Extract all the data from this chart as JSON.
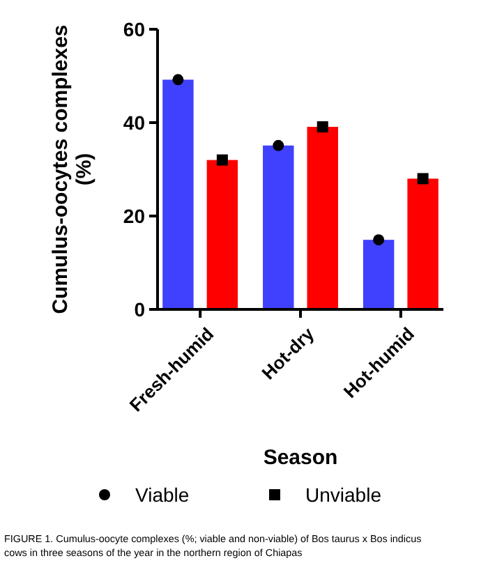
{
  "chart_data": {
    "type": "bar",
    "xlabel": "Season",
    "ylabel": "Cumulus-oocytes complexes\n(%)",
    "categories": [
      "Fresh-humid",
      "Hot-dry",
      "Hot-humid"
    ],
    "series": [
      {
        "color": "#4040ff",
        "values": [
          49.2,
          35.1,
          14.9
        ]
      },
      {
        "color": "#ff0000",
        "values": [
          32.0,
          39.1,
          28.0
        ]
      },
      {
        "type": "scatter",
        "name": "Viable",
        "color": "#000000",
        "marker": "circle",
        "x": [
          "Fresh-humid",
          "Hot-dry",
          "Hot-humid"
        ],
        "values": [
          49.2,
          35.1,
          14.9
        ]
      },
      {
        "type": "scatter",
        "name": "Unviable",
        "color": "#000000",
        "marker": "square",
        "x": [
          "Fresh-humid",
          "Hot-dry",
          "Hot-humid"
        ],
        "values": [
          32.0,
          39.1,
          28.0
        ]
      }
    ],
    "ylim": [
      0,
      60
    ],
    "yticks": [
      0,
      20,
      40,
      60
    ],
    "grid": false,
    "legend": "bottom",
    "annotations": [
      "FIGURE 1. Cumulus-oocyte complexes (%; viable and non-viable) of Bos taurus x Bos indicus cows in three seasons of the year in the northern region of Chiapas"
    ]
  }
}
